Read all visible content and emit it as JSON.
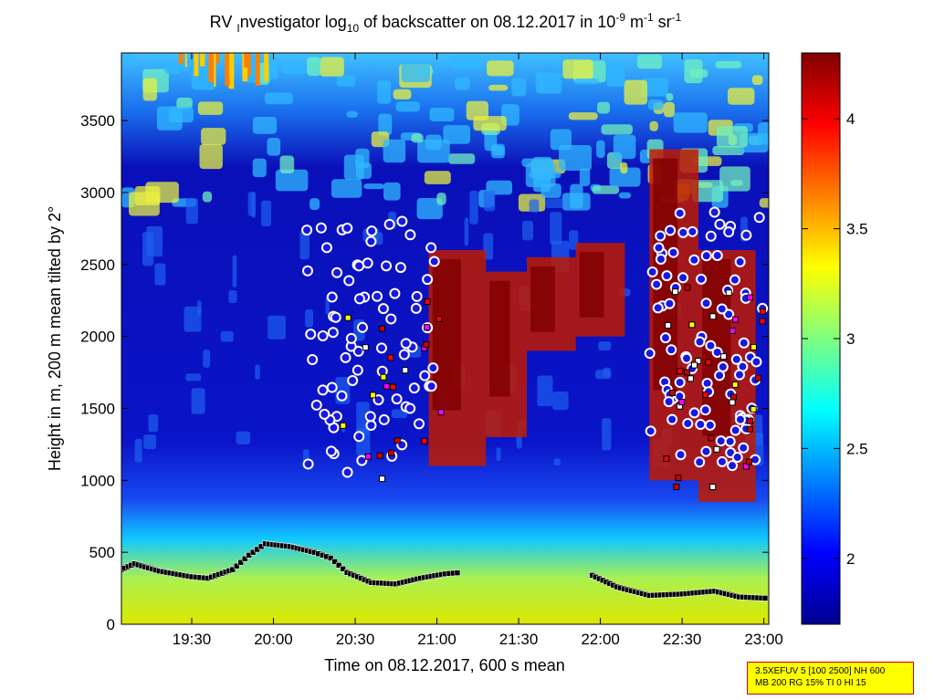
{
  "chart_data": {
    "type": "heatmap",
    "title": {
      "part1": "RV ",
      "sub1": "I",
      "part2": "nvestigator log",
      "sub2": "10",
      "part3": " of backscatter on 08.12.2017 in 10",
      "sup1": "-9",
      "part4": " m",
      "sup2": "-1",
      "part5": " sr",
      "sup3": "-1"
    },
    "xlabel": "Time on 08.12.2017, 600 s mean",
    "ylabel": "Height in m, 200 m mean tilted by 2°",
    "x_range_hours": [
      19.07,
      23.03
    ],
    "x_ticks": [
      {
        "value": 19.5,
        "label": "19:30"
      },
      {
        "value": 20.0,
        "label": "20:00"
      },
      {
        "value": 20.5,
        "label": "20:30"
      },
      {
        "value": 21.0,
        "label": "21:00"
      },
      {
        "value": 21.5,
        "label": "21:30"
      },
      {
        "value": 22.0,
        "label": "22:00"
      },
      {
        "value": 22.5,
        "label": "22:30"
      },
      {
        "value": 23.0,
        "label": "23:00"
      }
    ],
    "ylim": [
      0,
      3970
    ],
    "y_ticks": [
      0,
      500,
      1000,
      1500,
      2000,
      2500,
      3000,
      3500
    ],
    "colorbar": {
      "range": [
        1.7,
        4.3
      ],
      "ticks": [
        2,
        2.5,
        3,
        3.5,
        4
      ],
      "tick_labels": [
        "2",
        "2.5",
        "3",
        "3.5",
        "4"
      ],
      "colormap": "jet"
    },
    "features": {
      "low_layer_height_m": [
        [
          19.07,
          380
        ],
        [
          19.15,
          420
        ],
        [
          19.3,
          370
        ],
        [
          19.5,
          330
        ],
        [
          19.6,
          320
        ],
        [
          19.75,
          380
        ],
        [
          19.85,
          480
        ],
        [
          19.95,
          560
        ],
        [
          20.1,
          540
        ],
        [
          20.25,
          500
        ],
        [
          20.35,
          460
        ],
        [
          20.45,
          360
        ],
        [
          20.6,
          290
        ],
        [
          20.75,
          280
        ],
        [
          20.9,
          320
        ],
        [
          21.05,
          350
        ],
        [
          21.15,
          360
        ]
      ],
      "right_layer_height_m": [
        [
          21.95,
          340
        ],
        [
          22.1,
          260
        ],
        [
          22.3,
          200
        ],
        [
          22.5,
          210
        ],
        [
          22.7,
          230
        ],
        [
          22.85,
          190
        ],
        [
          23.03,
          180
        ]
      ]
    }
  },
  "annotation": {
    "line1": "3.5XEFUV 5 [100 2500] NH 600",
    "line2": "MB 200 RG 15% TI 0 HI 15"
  }
}
